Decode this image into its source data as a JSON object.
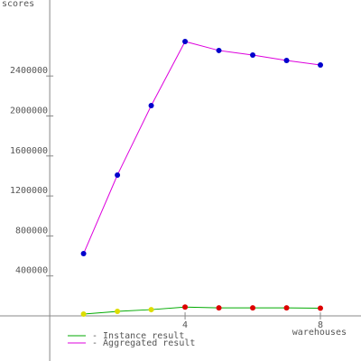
{
  "chart_data": {
    "type": "line",
    "y_label": "scores",
    "x_label": "warehouses",
    "x": [
      1,
      2,
      3,
      4,
      5,
      6,
      7,
      8
    ],
    "series": [
      {
        "name": "- Instance result",
        "color": "#00aa00",
        "marker_colors": [
          "#dddd00",
          "#dddd00",
          "#dddd00",
          "#dd0000",
          "#dd0000",
          "#dd0000",
          "#dd0000",
          "#dd0000"
        ],
        "values": [
          18000,
          45000,
          63000,
          88000,
          81000,
          81000,
          80000,
          77000
        ]
      },
      {
        "name": "- Aggregated result",
        "color": "#dd00dd",
        "marker_colors": [
          "#0000cc",
          "#0000cc",
          "#0000cc",
          "#0000cc",
          "#0000cc",
          "#0000cc",
          "#0000cc",
          "#0000cc"
        ],
        "values": [
          623000,
          1409000,
          2104000,
          2745000,
          2655000,
          2609000,
          2555000,
          2510000
        ]
      }
    ],
    "xlim": [
      -1.47,
      9.2
    ],
    "xticks": [
      4,
      8
    ],
    "ylim": [
      -451000,
      3160000
    ],
    "yticks": [
      400000,
      800000,
      1200000,
      1600000,
      2000000,
      2400000
    ]
  }
}
